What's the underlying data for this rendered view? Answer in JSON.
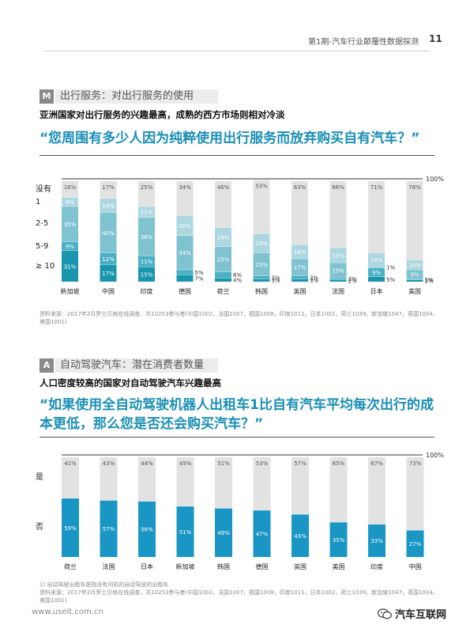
{
  "header": {
    "title": "第1期-汽车行业颠覆性数据探测",
    "page": "11"
  },
  "section1": {
    "letter": "M",
    "title": "出行服务：对出行服务的使用",
    "subtitle": "亚洲国家对出行服务的兴趣最高，成熟的西方市场则相对冷淡",
    "question": "“您周围有多少人因为纯粹使用出行服务而放弃购买自有汽车？”",
    "source": "资料来源：2017年2月罗兰贝格在线调查，共10253参与者(中国1002，法国1007，德国1008，印度1011，日本1002，荷兰1039，新加坡1047，英国1004，美国1001)"
  },
  "section2": {
    "letter": "A",
    "title": "自动驾驶汽车：潜在消费者数量",
    "subtitle": "人口密度较高的国家对自动驾驶汽车兴趣最高",
    "question": "“如果使用全自动驾驶机器人出租车1比自有汽车平均每次出行的成本更低，那么您是否还会购买汽车？”",
    "note": "1) 自动驾驶出租车是指没有司机的自动驾驶的出租车",
    "source": "资料来源：2017年2月罗兰贝格在线调查，共10253参与者(中国1002，法国1007，德国1008，印度1011，日本1002，荷兰1039，新加坡1047，英国1004，美国1001)"
  },
  "footer": {
    "url": "www.useit.com.cn",
    "brand": "汽车互联网"
  },
  "chart_data": [
    {
      "type": "bar",
      "stacked": true,
      "label_100": "100%",
      "categories": [
        "新加坡",
        "中国",
        "印度",
        "德国",
        "荷兰",
        "韩国",
        "英国",
        "法国",
        "日本",
        "美国"
      ],
      "series": [
        {
          "name": "≥ 10",
          "color": "#1996ad",
          "values": [
            31,
            17,
            15,
            7,
            4,
            3,
            3,
            2,
            5,
            2
          ]
        },
        {
          "name": "5-9",
          "color": "#4ab0c4",
          "values": [
            9,
            12,
            11,
            5,
            6,
            3,
            3,
            2,
            9,
            1
          ]
        },
        {
          "name": "2-5",
          "color": "#7fc3d1",
          "values": [
            35,
            40,
            38,
            34,
            25,
            23,
            17,
            15,
            1,
            9
          ]
        },
        {
          "name": "1",
          "color": "#acd7e0",
          "values": [
            9,
            14,
            11,
            20,
            19,
            19,
            14,
            15,
            14,
            10
          ]
        },
        {
          "name": "没有",
          "color": "#e2e2e2",
          "values": [
            16,
            17,
            25,
            34,
            46,
            53,
            63,
            66,
            71,
            78
          ]
        }
      ],
      "ylim": [
        0,
        100
      ]
    },
    {
      "type": "bar",
      "stacked": true,
      "label_100": "100%",
      "categories": [
        "荷兰",
        "法国",
        "日本",
        "新加坡",
        "韩国",
        "德国",
        "英国",
        "美国",
        "印度",
        "中国"
      ],
      "series": [
        {
          "name": "否",
          "color": "#1996c4",
          "values": [
            59,
            57,
            56,
            51,
            49,
            47,
            43,
            35,
            33,
            27
          ]
        },
        {
          "name": "是",
          "color": "#e2e2e2",
          "values": [
            41,
            43,
            44,
            49,
            51,
            53,
            57,
            65,
            67,
            73
          ]
        }
      ],
      "ylim": [
        0,
        100
      ]
    }
  ]
}
